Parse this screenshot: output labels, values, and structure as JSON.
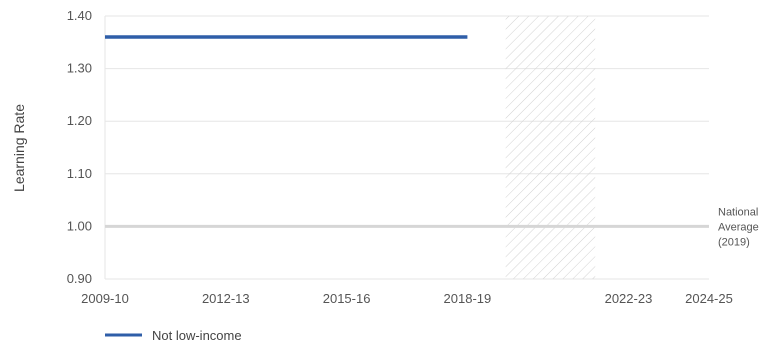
{
  "chart_data": {
    "type": "line",
    "ylabel": "Learning Rate",
    "ylim": [
      0.9,
      1.4
    ],
    "yticks": [
      "0.90",
      "1.00",
      "1.10",
      "1.20",
      "1.30",
      "1.40"
    ],
    "xticks": [
      "2009-10",
      "2012-13",
      "2015-16",
      "2018-19",
      "2022-23",
      "2024-25"
    ],
    "series": [
      {
        "name": "Not low-income",
        "color": "#2f5ea8",
        "points": [
          {
            "x": "2009-10",
            "y": 1.36
          },
          {
            "x": "2018-19",
            "y": 1.36
          }
        ]
      }
    ],
    "reference_line": {
      "value": 1.0,
      "label_lines": [
        "National",
        "Average",
        "(2019)"
      ],
      "color": "#d6d6d6"
    },
    "hatched_region": {
      "from": "2019-20",
      "to": "2021-22"
    },
    "grid": true,
    "legend_position": "bottom-left"
  }
}
